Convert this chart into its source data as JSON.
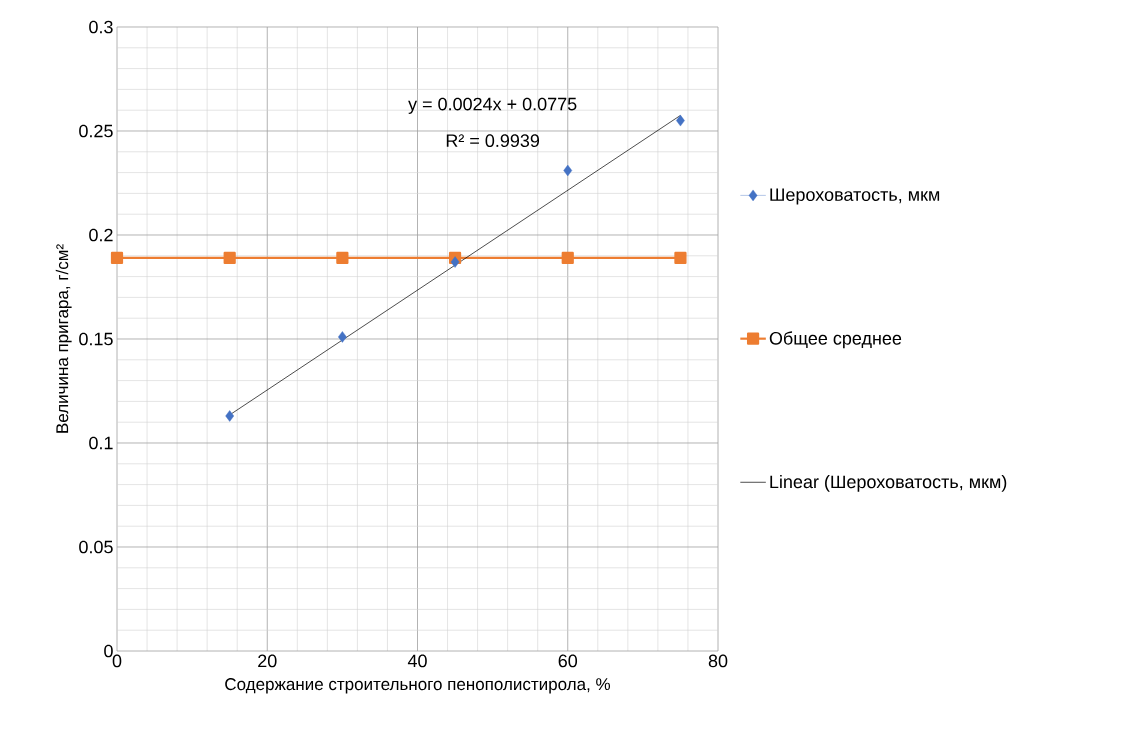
{
  "chart_data": {
    "type": "scatter",
    "xlabel": "Содержание строительного пенополистирола, %",
    "ylabel": "Величина пригара, г/см²",
    "xlim": [
      0,
      80
    ],
    "xticks": [
      0,
      20,
      40,
      60,
      80
    ],
    "ylim": [
      0,
      0.3
    ],
    "yticks": [
      0,
      0.05,
      0.1,
      0.15,
      0.2,
      0.25,
      0.3
    ],
    "grid": true,
    "legend": "right",
    "annotations": [
      "y = 0.0024x + 0.0775",
      "R² = 0.9939"
    ],
    "series": [
      {
        "name": "Шероховатость, мкм",
        "marker": "diamond",
        "color": "#4472c4",
        "x": [
          15,
          30,
          45,
          60,
          75
        ],
        "values": [
          0.113,
          0.151,
          0.187,
          0.231,
          0.255
        ]
      },
      {
        "name": "Общее среднее",
        "type": "line",
        "marker": "square",
        "color": "#ed7d31",
        "x": [
          0,
          15,
          30,
          45,
          60,
          75
        ],
        "values": [
          0.189,
          0.189,
          0.189,
          0.189,
          0.189,
          0.189
        ]
      },
      {
        "name": "Linear (Шероховатость, мкм)",
        "type": "line",
        "marker": "none",
        "color": "#000000",
        "x": [
          15,
          75
        ],
        "values": [
          0.1135,
          0.2575
        ]
      }
    ]
  }
}
